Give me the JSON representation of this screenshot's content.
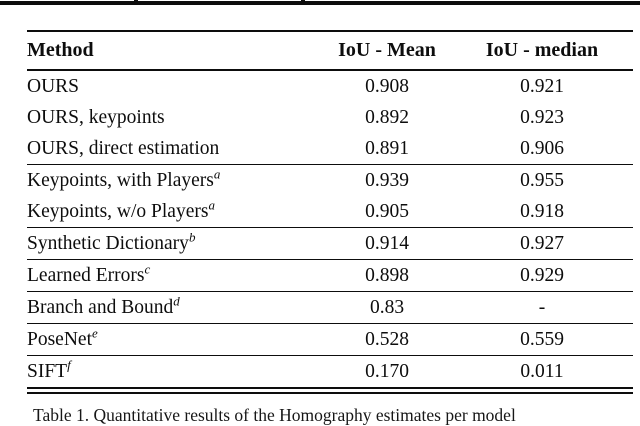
{
  "artifacts": {
    "top_rule": "horizontal rule cropped from content above",
    "descender_fragments": 2
  },
  "table": {
    "columns": [
      "Method",
      "IoU - Mean",
      "IoU - median"
    ],
    "rows": [
      {
        "method": "OURS",
        "sup": "",
        "mean": "0.908",
        "median": "0.921",
        "rule_above": false
      },
      {
        "method": "OURS, keypoints",
        "sup": "",
        "mean": "0.892",
        "median": "0.923",
        "rule_above": false
      },
      {
        "method": "OURS, direct estimation",
        "sup": "",
        "mean": "0.891",
        "median": "0.906",
        "rule_above": false
      },
      {
        "method": "Keypoints, with Players",
        "sup": "a",
        "mean": "0.939",
        "median": "0.955",
        "rule_above": true
      },
      {
        "method": "Keypoints, w/o Players",
        "sup": "a",
        "mean": "0.905",
        "median": "0.918",
        "rule_above": false
      },
      {
        "method": "Synthetic Dictionary",
        "sup": "b",
        "mean": "0.914",
        "median": "0.927",
        "rule_above": true
      },
      {
        "method": "Learned Errors",
        "sup": "c",
        "mean": "0.898",
        "median": "0.929",
        "rule_above": true
      },
      {
        "method": "Branch and Bound",
        "sup": "d",
        "mean": "0.83",
        "median": "-",
        "rule_above": true
      },
      {
        "method": "PoseNet",
        "sup": "e",
        "mean": "0.528",
        "median": "0.559",
        "rule_above": true
      },
      {
        "method": "SIFT",
        "sup": "f",
        "mean": "0.170",
        "median": "0.011",
        "rule_above": true
      }
    ]
  },
  "caption": {
    "text": "Table 1. Quantitative results of the Homography estimates per model"
  }
}
